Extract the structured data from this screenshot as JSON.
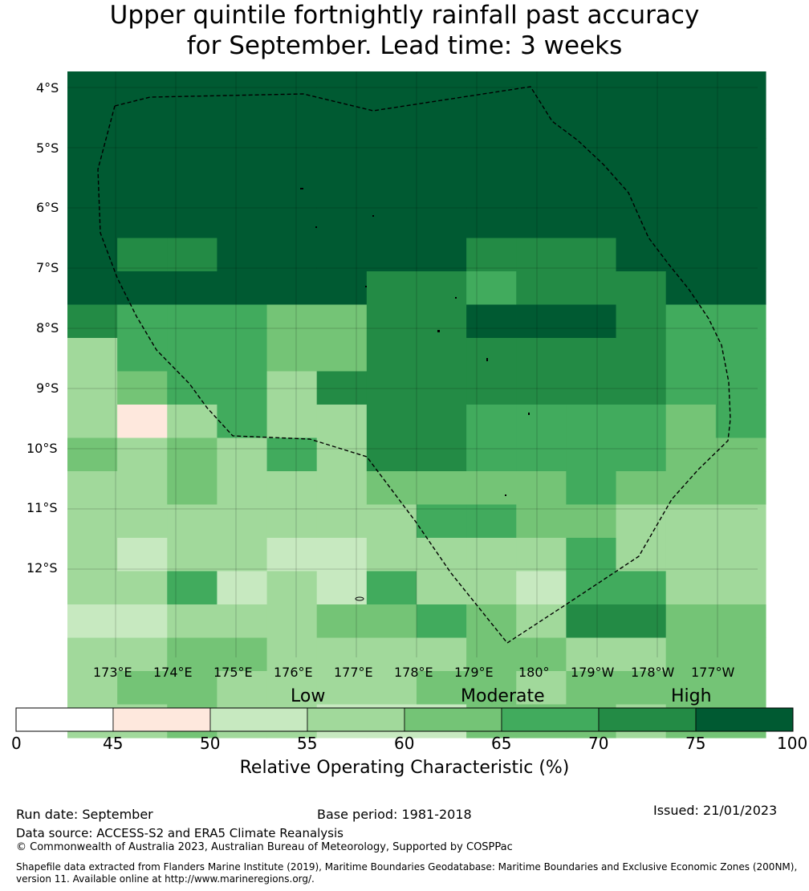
{
  "title": {
    "line1": "Upper quintile fortnightly rainfall past accuracy",
    "line2": "for September. Lead time: 3 weeks"
  },
  "map": {
    "lat_labels": [
      "4°S",
      "5°S",
      "6°S",
      "7°S",
      "8°S",
      "9°S",
      "10°S",
      "11°S",
      "12°S"
    ],
    "lon_labels": [
      "173°E",
      "174°E",
      "175°E",
      "176°E",
      "177°E",
      "178°E",
      "179°E",
      "180°",
      "179°W",
      "178°W",
      "177°W"
    ],
    "grid_rows": [
      "88888888888888",
      "88888888888888",
      "88888888888888",
      "88888888888888",
      "88888888888888",
      "87788888777888",
      "88888877677788",
      "76665577888766",
      "36665577777766",
      "35663777777766",
      "31363377666656",
      "53536377666655",
      "33533355556445",
      "33333336655333",
      "32332233336333",
      "33623263326633",
      "22333556537744",
      "33553333543355",
      "35433335535545",
      "33433222444344"
    ],
    "palette": {
      "1": "#fee8dd",
      "2": "#c7e9c0",
      "3": "#a1d99b",
      "4": "#74c476",
      "5": "#74c476",
      "6": "#41ab5d",
      "7": "#238b45",
      "8": "#005a32"
    }
  },
  "legend": {
    "categories": [
      "Low",
      "Moderate",
      "High"
    ],
    "ticks": [
      "0",
      "45",
      "50",
      "55",
      "60",
      "65",
      "70",
      "75",
      "100"
    ],
    "colors": [
      "#ffffff",
      "#fee8dd",
      "#c7e9c0",
      "#a1d99b",
      "#74c476",
      "#41ab5d",
      "#238b45",
      "#005a32"
    ],
    "label": "Relative Operating Characteristic (%)"
  },
  "footer": {
    "run_date": "Run date: September",
    "base_period": "Base period: 1981-2018",
    "issued": "Issued: 21/01/2023",
    "data_source": "Data source: ACCESS-S2 and ERA5 Climate Reanalysis",
    "copyright": "© Commonwealth of Australia 2023, Australian Bureau of Meteorology, Supported by COSPPac",
    "shapefile_line1": "Shapefile data extracted from Flanders Marine Institute (2019), Maritime Boundaries Geodatabase: Maritime Boundaries and Exclusive Economic Zones (200NM),",
    "shapefile_line2": "version 11. Available online at http://www.marineregions.org/."
  }
}
